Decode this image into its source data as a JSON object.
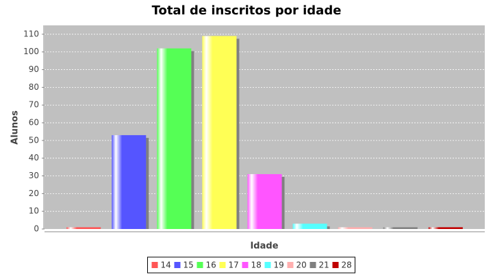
{
  "chart_data": {
    "type": "bar",
    "title": "Total de inscritos por idade",
    "x_label": "Idade",
    "y_label": "Alunos",
    "categories": [
      null
    ],
    "series": [
      {
        "name": "14",
        "color": "#ff5555",
        "values": [
          1
        ]
      },
      {
        "name": "15",
        "color": "#5555ff",
        "values": [
          53
        ]
      },
      {
        "name": "16",
        "color": "#55ff55",
        "values": [
          102
        ]
      },
      {
        "name": "17",
        "color": "#ffff55",
        "values": [
          109
        ]
      },
      {
        "name": "18",
        "color": "#ff55ff",
        "values": [
          31
        ]
      },
      {
        "name": "19",
        "color": "#55ffff",
        "values": [
          3
        ]
      },
      {
        "name": "20",
        "color": "#ffafaf",
        "values": [
          1
        ]
      },
      {
        "name": "21",
        "color": "#808080",
        "values": [
          1
        ]
      },
      {
        "name": "28",
        "color": "#c00000",
        "values": [
          1
        ]
      }
    ],
    "ylim": [
      0,
      115
    ],
    "yticks": [
      0,
      10,
      20,
      30,
      40,
      50,
      60,
      70,
      80,
      90,
      100,
      110
    ],
    "grid": true,
    "legend": "bottom"
  }
}
